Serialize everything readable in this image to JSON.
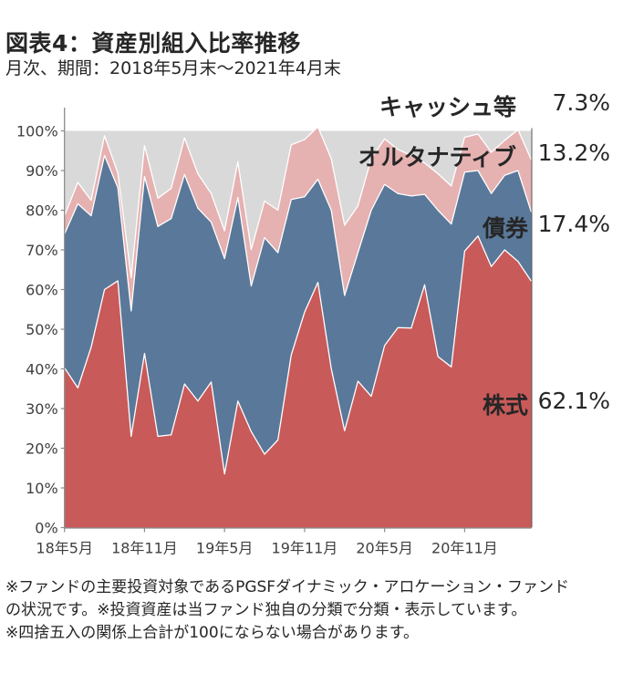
{
  "header": {
    "title": "図表4：資産別組入比率推移",
    "subtitle": "月次、期間：2018年5月末～2021年4月末"
  },
  "chart_data": {
    "type": "area",
    "stacked": true,
    "title": "図表4：資産別組入比率推移",
    "subtitle": "月次、期間：2018年5月末～2021年4月末",
    "xlabel": "",
    "ylabel": "",
    "ylim": [
      0,
      100
    ],
    "y_ticks": [
      "0%",
      "10%",
      "20%",
      "30%",
      "40%",
      "50%",
      "60%",
      "70%",
      "80%",
      "90%",
      "100%"
    ],
    "x_tick_labels": [
      {
        "index": 0,
        "label": "18年5月"
      },
      {
        "index": 6,
        "label": "18年11月"
      },
      {
        "index": 12,
        "label": "19年5月"
      },
      {
        "index": 18,
        "label": "19年11月"
      },
      {
        "index": 24,
        "label": "20年5月"
      },
      {
        "index": 30,
        "label": "20年11月"
      }
    ],
    "x": [
      "2018-05",
      "2018-06",
      "2018-07",
      "2018-08",
      "2018-09",
      "2018-10",
      "2018-11",
      "2018-12",
      "2019-01",
      "2019-02",
      "2019-03",
      "2019-04",
      "2019-05",
      "2019-06",
      "2019-07",
      "2019-08",
      "2019-09",
      "2019-10",
      "2019-11",
      "2019-12",
      "2020-01",
      "2020-02",
      "2020-03",
      "2020-04",
      "2020-05",
      "2020-06",
      "2020-07",
      "2020-08",
      "2020-09",
      "2020-10",
      "2020-11",
      "2020-12",
      "2021-01",
      "2021-02",
      "2021-03",
      "2021-04"
    ],
    "series": [
      {
        "name": "株式",
        "color": "#c95a5a",
        "values": [
          40.3,
          35.2,
          45.5,
          60.0,
          62.2,
          23.0,
          43.9,
          23.0,
          23.4,
          36.2,
          31.9,
          36.7,
          13.5,
          31.9,
          24.2,
          18.5,
          22.1,
          43.5,
          54.3,
          61.8,
          40.1,
          24.4,
          36.9,
          33.1,
          45.9,
          50.4,
          50.3,
          61.2,
          43.1,
          40.5,
          69.7,
          73.5,
          65.8,
          70.0,
          67.1,
          62.1
        ]
      },
      {
        "name": "債券",
        "color": "#5a7899",
        "values": [
          33.7,
          46.4,
          33.1,
          33.8,
          23.5,
          31.6,
          44.6,
          52.9,
          54.5,
          52.8,
          48.6,
          40.3,
          54.3,
          51.3,
          36.7,
          54.6,
          47.2,
          39.2,
          29.1,
          26.0,
          39.9,
          34.1,
          32.4,
          46.9,
          40.6,
          33.8,
          33.3,
          22.8,
          36.9,
          36.0,
          19.9,
          16.5,
          18.4,
          18.8,
          22.9,
          17.4
        ]
      },
      {
        "name": "オルタナティブ",
        "color": "#e6b1b1",
        "values": [
          4.6,
          5.4,
          3.9,
          5.0,
          3.7,
          8.4,
          7.8,
          7.1,
          7.6,
          9.2,
          8.7,
          7.2,
          7.0,
          9.0,
          9.2,
          9.2,
          10.7,
          13.8,
          14.4,
          13.2,
          13.0,
          17.7,
          11.8,
          13.0,
          11.5,
          11.1,
          10.2,
          7.9,
          9.2,
          9.6,
          8.8,
          9.2,
          10.4,
          8.8,
          10.3,
          13.2
        ]
      },
      {
        "name": "キャッシュ等",
        "color": "#d9d9d9",
        "values": [
          21.4,
          13.0,
          17.5,
          1.2,
          10.6,
          37.0,
          3.7,
          17.0,
          14.5,
          1.8,
          10.8,
          15.8,
          25.2,
          7.8,
          29.9,
          17.7,
          20.0,
          3.5,
          2.2,
          -1.0,
          7.0,
          23.8,
          18.9,
          7.0,
          2.0,
          4.7,
          6.2,
          8.1,
          10.8,
          13.9,
          1.6,
          0.8,
          5.4,
          2.4,
          -0.3,
          7.3
        ]
      }
    ],
    "latest_labels": [
      {
        "name": "キャッシュ等",
        "value": "7.3%"
      },
      {
        "name": "オルタナティブ",
        "value": "13.2%"
      },
      {
        "name": "債券",
        "value": "17.4%"
      },
      {
        "name": "株式",
        "value": "62.1%"
      }
    ],
    "grid": false,
    "legend": "right (direct labels)"
  },
  "notes": [
    "※ファンドの主要投資対象であるPGSFダイナミック・アロケーション・ファンド",
    "の状況です。※投資資産は当ファンド独自の分類で分類・表示しています。",
    "※四捨五入の関係上合計が100にならない場合があります。"
  ]
}
